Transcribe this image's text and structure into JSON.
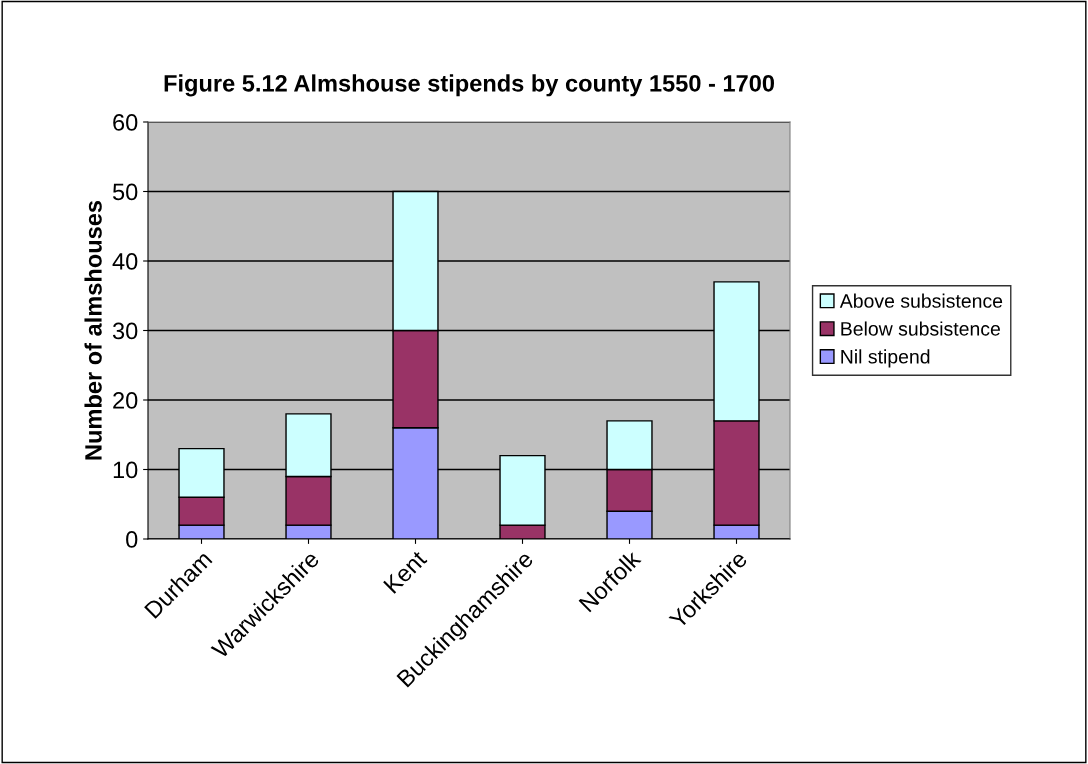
{
  "chart_data": {
    "type": "bar",
    "title": "Figure 5.12 Almshouse stipends by county 1550 - 1700",
    "ylabel": "Number of almshouses",
    "categories": [
      "Durham",
      "Warwickshire",
      "Kent",
      "Buckinghamshire",
      "Norfolk",
      "Yorkshire"
    ],
    "stacked": true,
    "series": [
      {
        "name": "Nil stipend",
        "color": "#9999ff",
        "values": [
          2,
          2,
          16,
          0,
          4,
          2
        ]
      },
      {
        "name": "Below subsistence",
        "color": "#993366",
        "values": [
          4,
          7,
          14,
          2,
          6,
          15
        ]
      },
      {
        "name": "Above subsistence",
        "color": "#ccffff",
        "values": [
          7,
          9,
          20,
          10,
          7,
          20
        ]
      }
    ],
    "ylim": [
      0,
      60
    ],
    "yticks": [
      0,
      10,
      20,
      30,
      40,
      50,
      60
    ],
    "grid": "y",
    "legend": "right"
  }
}
